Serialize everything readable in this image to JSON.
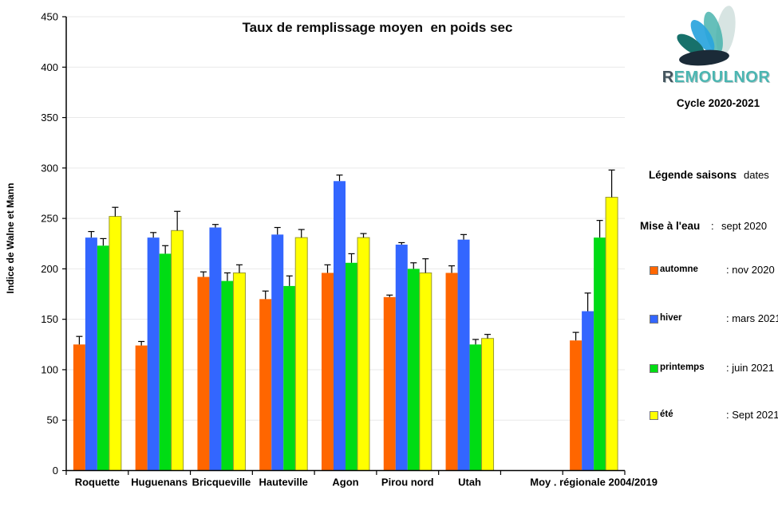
{
  "chart_data": {
    "type": "bar",
    "title": "Taux de remplissage moyen  en poids sec",
    "xlabel": "",
    "ylabel": "Indice de Walne et Mann",
    "ylim": [
      0,
      450
    ],
    "ytick_step": 50,
    "grid": true,
    "error_bars": "plus-direction-with-cap",
    "categories": [
      "Roquette",
      "Huguenans",
      "Bricqueville",
      "Hauteville",
      "Agon",
      "Pirou nord",
      "Utah",
      "Moy . régionale 2004/2019"
    ],
    "series": [
      {
        "name": "automne",
        "color": "#FF6600",
        "values": [
          125,
          124,
          192,
          170,
          196,
          172,
          196,
          129
        ],
        "err_up": [
          8,
          4,
          5,
          8,
          8,
          2,
          7,
          8
        ]
      },
      {
        "name": "hiver",
        "color": "#3366FF",
        "values": [
          231,
          231,
          241,
          234,
          287,
          224,
          229,
          158
        ],
        "err_up": [
          6,
          5,
          3,
          7,
          6,
          2,
          5,
          18
        ]
      },
      {
        "name": "printemps",
        "color": "#00DC14",
        "values": [
          223,
          215,
          188,
          183,
          206,
          200,
          125,
          231
        ],
        "err_up": [
          7,
          8,
          8,
          10,
          9,
          6,
          5,
          17
        ]
      },
      {
        "name": "été",
        "color": "#FFFF00",
        "border_color": "#999933",
        "values": [
          252,
          238,
          196,
          231,
          231,
          196,
          131,
          271
        ],
        "err_up": [
          9,
          19,
          8,
          8,
          4,
          14,
          4,
          27
        ]
      }
    ],
    "layout": {
      "total_slots": 9,
      "category_slots": [
        0,
        1,
        2,
        3,
        4,
        5,
        6,
        8
      ],
      "legend_position": "right-panel"
    }
  },
  "sidebar": {
    "logo_first_letter": "R",
    "logo_rest": "EMOULNOR",
    "logo_colors": {
      "first": "#44545E",
      "rest": "#4BB6B2"
    },
    "cycle": "Cycle 2020-2021",
    "legend_heading": {
      "label": "Légende saisons",
      "sep": ":",
      "value": "dates"
    },
    "mise_a_leau": {
      "label": "Mise à l'eau",
      "sep": ":",
      "value": "sept 2020"
    },
    "seasons": [
      {
        "label": "automne",
        "date": ": nov 2020",
        "color": "#FF6600"
      },
      {
        "label": "hiver",
        "date": ": mars 2021",
        "color": "#3366FF"
      },
      {
        "label": "printemps",
        "date": ":  juin 2021",
        "color": "#00DC14"
      },
      {
        "label": "été",
        "date": ": Sept 2021",
        "color": "#FFFF00"
      }
    ]
  }
}
